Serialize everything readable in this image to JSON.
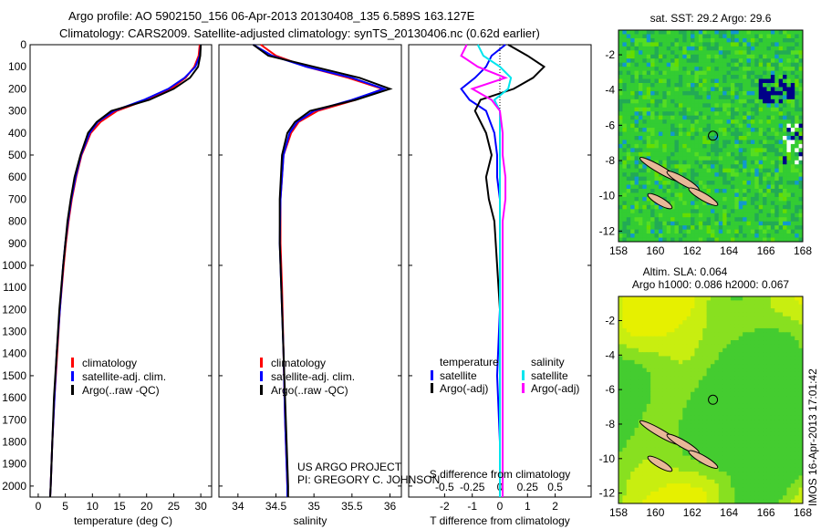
{
  "title": {
    "line1": "Argo profile: AO 5902150_156 06-Apr-2013 20130408_135 6.589S 163.127E",
    "line2": "Climatology: CARS2009. Satellite-adjusted climatology: synTS_20130406.nc (0.62d earlier)"
  },
  "colors": {
    "climatology": "#ff0000",
    "satellite": "#0000ff",
    "argo": "#000000",
    "sal_sat": "#00e5ee",
    "sal_argo": "#ff00ff"
  },
  "chart_data": [
    {
      "type": "line",
      "name": "temperature",
      "xlabel": "temperature (deg C)",
      "xlim": [
        -1.5,
        32
      ],
      "ylim": [
        2050,
        0
      ],
      "xticks": [
        0,
        5,
        10,
        15,
        20,
        25,
        30
      ],
      "yticks": [
        0,
        100,
        200,
        300,
        400,
        500,
        600,
        700,
        800,
        900,
        1000,
        1100,
        1200,
        1300,
        1400,
        1500,
        1600,
        1700,
        1800,
        1900,
        2000
      ],
      "legend": [
        "climatology",
        "satellite-adj. clim.",
        "Argo(..raw -QC)"
      ],
      "depth": [
        0,
        50,
        100,
        150,
        200,
        250,
        300,
        350,
        400,
        500,
        600,
        700,
        800,
        900,
        1000,
        1200,
        1400,
        1600,
        1800,
        2000,
        2050
      ],
      "series": [
        {
          "name": "climatology",
          "color": "#ff0000",
          "values": [
            29.8,
            29.6,
            28.8,
            27.2,
            24.5,
            20,
            14.5,
            11.5,
            9.7,
            8,
            7,
            6.2,
            5.6,
            5.1,
            4.7,
            4,
            3.5,
            3,
            2.6,
            2.3,
            2.2
          ]
        },
        {
          "name": "satellite-adj. clim.",
          "color": "#0000ff",
          "values": [
            30,
            29.8,
            29,
            27,
            24,
            19.5,
            14,
            11,
            9.5,
            7.9,
            6.9,
            6.1,
            5.5,
            5,
            4.6,
            4,
            3.4,
            3,
            2.6,
            2.3,
            2.2
          ]
        },
        {
          "name": "Argo(..raw -QC)",
          "color": "#000000",
          "values": [
            30,
            29.9,
            29.5,
            28,
            25,
            20.5,
            13.5,
            10.8,
            9.2,
            7.8,
            6.7,
            6,
            5.4,
            5,
            4.6,
            3.9,
            3.4,
            2.9,
            2.6,
            2.3,
            2.2
          ]
        }
      ]
    },
    {
      "type": "line",
      "name": "salinity",
      "xlabel": "salinity",
      "xlim": [
        33.75,
        36.15
      ],
      "ylim": [
        2050,
        0
      ],
      "xticks": [
        34,
        34.5,
        35,
        35.5,
        36
      ],
      "legend": [
        "climatology",
        "satellite-adj. clim.",
        "Argo(..raw -QC)"
      ],
      "depth": [
        0,
        50,
        100,
        150,
        200,
        250,
        300,
        350,
        400,
        500,
        700,
        900,
        1100,
        1400,
        1700,
        2000,
        2050
      ],
      "series": [
        {
          "name": "climatology",
          "color": "#ff0000",
          "values": [
            34.3,
            34.5,
            34.9,
            35.45,
            35.9,
            35.55,
            35.05,
            34.8,
            34.7,
            34.6,
            34.56,
            34.56,
            34.58,
            34.6,
            34.62,
            34.65,
            34.65
          ]
        },
        {
          "name": "satellite-adj. clim.",
          "color": "#0000ff",
          "values": [
            34.2,
            34.45,
            34.9,
            35.5,
            35.92,
            35.5,
            35.0,
            34.78,
            34.68,
            34.6,
            34.56,
            34.55,
            34.57,
            34.6,
            34.62,
            34.65,
            34.65
          ]
        },
        {
          "name": "Argo(..raw -QC)",
          "color": "#000000",
          "values": [
            34.2,
            34.4,
            35.0,
            35.6,
            36.0,
            35.55,
            34.95,
            34.75,
            34.65,
            34.58,
            34.55,
            34.55,
            34.57,
            34.6,
            34.63,
            34.66,
            34.66
          ]
        }
      ]
    },
    {
      "type": "line",
      "name": "difference",
      "xlabel": "T difference from climatology",
      "x2label": "S difference from climatology",
      "xlim": [
        -3.3,
        3.3
      ],
      "ylim": [
        2050,
        0
      ],
      "xticks": [
        -2,
        -1,
        0,
        1,
        2
      ],
      "x2ticks": [
        "-0.5",
        "-0.25",
        "0",
        "0.25",
        "0.5"
      ],
      "legend": {
        "temperature": "temperature",
        "salinity": "salinity",
        "sat": "satellite",
        "argo": "Argo(-adj)"
      },
      "depth": [
        0,
        50,
        100,
        150,
        200,
        250,
        300,
        400,
        500,
        600,
        700,
        800,
        1000,
        1200,
        1500,
        1800,
        2050
      ],
      "series": [
        {
          "name": "T satellite",
          "color": "#0000ff",
          "values": [
            0.2,
            -0.3,
            -0.5,
            -0.9,
            -1.4,
            -1.1,
            -0.5,
            -0.2,
            -0.1,
            -0.1,
            0,
            0,
            0,
            0,
            -0.1,
            0,
            0
          ]
        },
        {
          "name": "T Argo(-adj)",
          "color": "#000000",
          "values": [
            0.3,
            1.0,
            1.6,
            1.2,
            0.5,
            -0.7,
            -0.9,
            -0.5,
            -0.3,
            -0.5,
            -0.4,
            -0.2,
            -0.1,
            0,
            0,
            0,
            0
          ]
        },
        {
          "name": "S satellite",
          "color": "#00e5ee",
          "values": [
            -0.8,
            -0.6,
            0,
            0.4,
            0.3,
            -0.2,
            0,
            0,
            0,
            0,
            0,
            0,
            0,
            0,
            0,
            0,
            0
          ]
        },
        {
          "name": "S Argo(-adj)",
          "color": "#ff00ff",
          "values": [
            -1.2,
            -1.4,
            -0.8,
            0.2,
            -1.0,
            -0.3,
            0,
            0.1,
            0.1,
            0.2,
            0.2,
            0.1,
            0.1,
            0.1,
            0.1,
            0.1,
            0.1
          ]
        }
      ]
    }
  ],
  "map1": {
    "title": "sat. SST: 29.2 Argo: 29.6",
    "xticks": [
      "158",
      "160",
      "162",
      "164",
      "166",
      "168"
    ],
    "yticks": [
      "-2",
      "-4",
      "-6",
      "-8",
      "-10",
      "-12"
    ]
  },
  "map2": {
    "title1": "Altim. SLA: 0.064",
    "title2": "Argo h1000: 0.086 h2000: 0.067",
    "xticks": [
      "158",
      "160",
      "162",
      "164",
      "166",
      "168"
    ],
    "yticks": [
      "-2",
      "-4",
      "-6",
      "-8",
      "-10",
      "-12"
    ]
  },
  "credits": {
    "project": "US ARGO PROJECT",
    "pi": "PI: GREGORY C. JOHNSON",
    "stamp": "IMOS 16-Apr-2013 17:01:42"
  }
}
